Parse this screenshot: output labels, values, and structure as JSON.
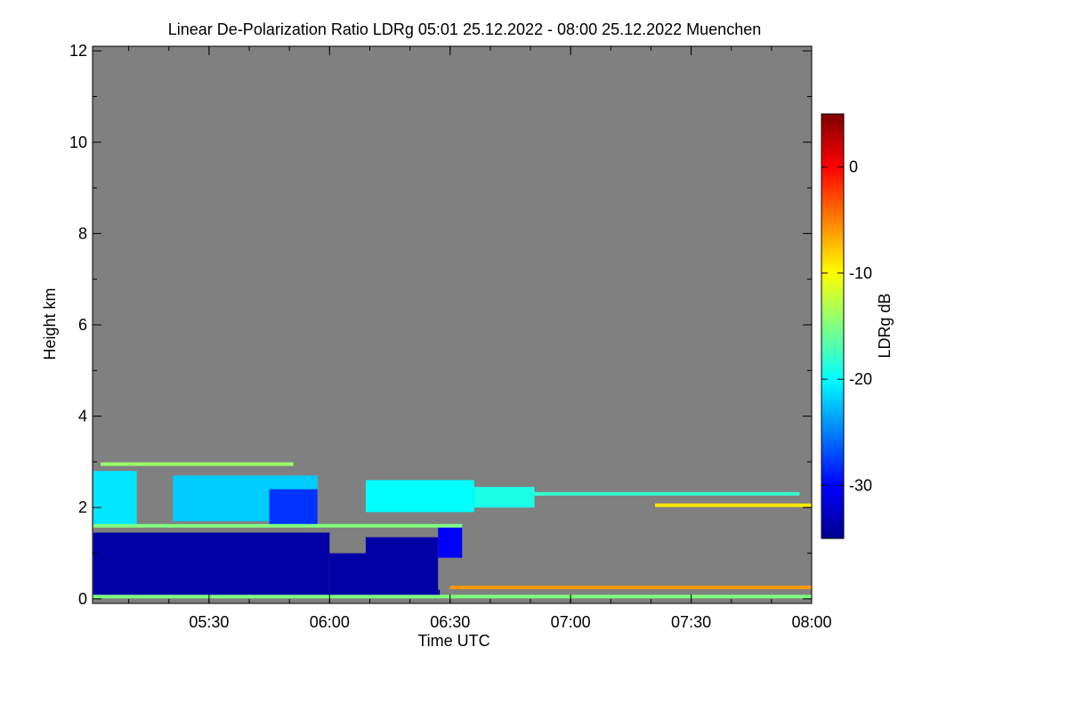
{
  "chart_data": {
    "type": "heatmap",
    "title": "Linear De-Polarization Ratio LDRg   05:01 25.12.2022 - 08:00 25.12.2022 Muenchen",
    "xlabel": "Time UTC",
    "ylabel": "Height km",
    "colorbar_label": "LDRg dB",
    "x_range_hours": [
      5.0167,
      8.0
    ],
    "x_ticks": [
      {
        "value": 5.5,
        "label": "05:30"
      },
      {
        "value": 6.0,
        "label": "06:00"
      },
      {
        "value": 6.5,
        "label": "06:30"
      },
      {
        "value": 7.0,
        "label": "07:00"
      },
      {
        "value": 7.5,
        "label": "07:30"
      },
      {
        "value": 8.0,
        "label": "08:00"
      }
    ],
    "ylim_km": [
      -0.1,
      12.1
    ],
    "y_ticks": [
      0,
      2,
      4,
      6,
      8,
      10,
      12
    ],
    "colorbar_range_db": [
      -35,
      5
    ],
    "colorbar_ticks": [
      {
        "value": 0,
        "label": "0"
      },
      {
        "value": -10,
        "label": "-10"
      },
      {
        "value": -20,
        "label": "-20"
      },
      {
        "value": -30,
        "label": "-30"
      }
    ],
    "colormap": [
      "#00008f",
      "#0000ff",
      "#0080ff",
      "#00ffff",
      "#80ff80",
      "#ffff00",
      "#ff8000",
      "#ff0000",
      "#800000"
    ],
    "background_color": "#808080",
    "regions": [
      {
        "t0": 5.02,
        "t1": 6.0,
        "h0": 0.05,
        "h1": 1.45,
        "ldr": -34
      },
      {
        "t0": 6.0,
        "t1": 6.2,
        "h0": 0.05,
        "h1": 1.0,
        "ldr": -34
      },
      {
        "t0": 6.15,
        "t1": 6.45,
        "h0": 0.05,
        "h1": 1.35,
        "ldr": -34
      },
      {
        "t0": 6.45,
        "t1": 6.45,
        "h0": 0.05,
        "h1": 0.2,
        "ldr": -34
      },
      {
        "t0": 5.02,
        "t1": 5.2,
        "h0": 1.6,
        "h1": 2.8,
        "ldr": -21
      },
      {
        "t0": 5.35,
        "t1": 5.95,
        "h0": 1.7,
        "h1": 2.7,
        "ldr": -22
      },
      {
        "t0": 5.75,
        "t1": 5.95,
        "h0": 1.6,
        "h1": 2.4,
        "ldr": -28
      },
      {
        "t0": 6.15,
        "t1": 6.6,
        "h0": 1.9,
        "h1": 2.6,
        "ldr": -20
      },
      {
        "t0": 6.6,
        "t1": 6.85,
        "h0": 2.0,
        "h1": 2.45,
        "ldr": -19
      },
      {
        "t0": 6.45,
        "t1": 6.55,
        "h0": 0.9,
        "h1": 1.6,
        "ldr": -30
      }
    ],
    "layers": [
      {
        "t0": 5.02,
        "t1": 6.55,
        "h": 1.6,
        "ldr": -15
      },
      {
        "t0": 5.05,
        "t1": 5.85,
        "h": 2.95,
        "ldr": -14
      },
      {
        "t0": 6.85,
        "t1": 7.95,
        "h": 2.3,
        "ldr": -18
      },
      {
        "t0": 7.35,
        "t1": 8.0,
        "h": 2.05,
        "ldr": -9
      },
      {
        "t0": 6.5,
        "t1": 8.0,
        "h": 0.25,
        "ldr": -6
      },
      {
        "t0": 5.0167,
        "t1": 8.0,
        "h": 0.05,
        "ldr": -15
      }
    ]
  }
}
